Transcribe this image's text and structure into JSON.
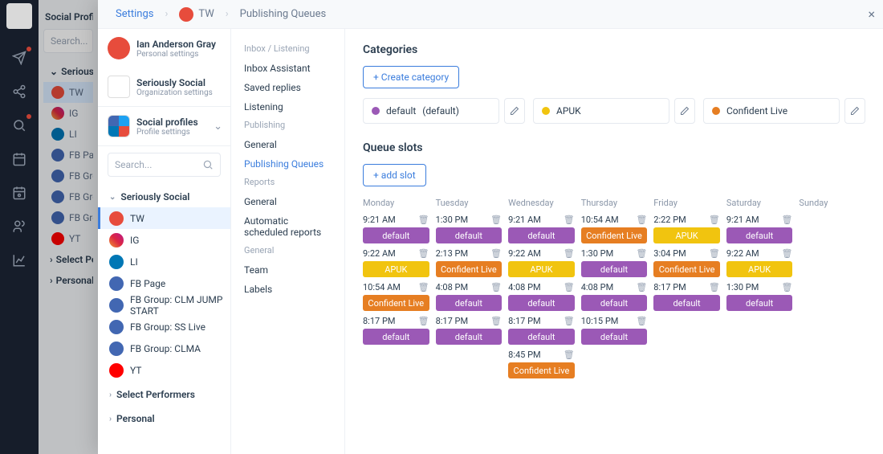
{
  "rail": {
    "items": [
      "logo",
      "send",
      "share",
      "search",
      "calendar",
      "schedule",
      "team",
      "stats"
    ]
  },
  "bg": {
    "title": "Social Profile",
    "search_placeholder": "Search...",
    "group": "Seriously",
    "items": [
      {
        "label": "TW",
        "cls": ""
      },
      {
        "label": "IG",
        "cls": "ig"
      },
      {
        "label": "LI",
        "cls": "li"
      },
      {
        "label": "FB Page",
        "cls": "fb"
      },
      {
        "label": "FB Grou",
        "cls": "fb"
      },
      {
        "label": "FB Grou",
        "cls": "fb"
      },
      {
        "label": "FB Grou",
        "cls": "fb"
      },
      {
        "label": "YT",
        "cls": "yt"
      }
    ],
    "select_perf": "Select Pe",
    "personal": "Personal"
  },
  "crumb": {
    "settings": "Settings",
    "profile": "TW",
    "page": "Publishing Queues"
  },
  "col1": {
    "p1": {
      "name": "Ian Anderson Gray",
      "sub": "Personal settings"
    },
    "p2": {
      "name": "Seriously Social",
      "sub": "Organization settings"
    },
    "p3": {
      "name": "Social profiles",
      "sub": "Profile settings"
    },
    "search_placeholder": "Search...",
    "group": "Seriously Social",
    "items": [
      {
        "label": "TW",
        "cls": "",
        "active": true
      },
      {
        "label": "IG",
        "cls": "ig"
      },
      {
        "label": "LI",
        "cls": "li"
      },
      {
        "label": "FB Page",
        "cls": "fb"
      },
      {
        "label": "FB Group: CLM JUMP START",
        "cls": "fb"
      },
      {
        "label": "FB Group: SS Live",
        "cls": "fb"
      },
      {
        "label": "FB Group: CLMA",
        "cls": "fb"
      },
      {
        "label": "YT",
        "cls": "yt"
      }
    ],
    "select_perf": "Select Performers",
    "personal": "Personal"
  },
  "col2": {
    "sections": [
      {
        "label": "Inbox / Listening",
        "items": [
          "Inbox Assistant",
          "Saved replies",
          "Listening"
        ]
      },
      {
        "label": "Publishing",
        "items": [
          "General",
          "Publishing Queues"
        ],
        "activeIndex": 1
      },
      {
        "label": "Reports",
        "items": [
          "General",
          "Automatic scheduled reports"
        ]
      },
      {
        "label": "General",
        "items": [
          "Team",
          "Labels"
        ]
      }
    ]
  },
  "main": {
    "categories_title": "Categories",
    "create_category": "+ Create category",
    "categories": [
      {
        "name": "default",
        "suffix": "(default)",
        "color": "#9b59b6"
      },
      {
        "name": "APUK",
        "suffix": "",
        "color": "#f1c40f"
      },
      {
        "name": "Confident Live",
        "suffix": "",
        "color": "#e67e22"
      }
    ],
    "queue_title": "Queue slots",
    "add_slot": "+ add slot",
    "category_colors": {
      "default": "#9b59b6",
      "APUK": "#f1c40f",
      "Confident Live": "#e67e22"
    },
    "days": [
      {
        "name": "Monday",
        "slots": [
          {
            "time": "9:21 AM",
            "cat": "default"
          },
          {
            "time": "9:22 AM",
            "cat": "APUK"
          },
          {
            "time": "10:54 AM",
            "cat": "Confident Live"
          },
          {
            "time": "8:17 PM",
            "cat": "default"
          }
        ]
      },
      {
        "name": "Tuesday",
        "slots": [
          {
            "time": "1:30 PM",
            "cat": "default"
          },
          {
            "time": "2:13 PM",
            "cat": "Confident Live"
          },
          {
            "time": "4:08 PM",
            "cat": "default"
          },
          {
            "time": "8:17 PM",
            "cat": "default"
          }
        ]
      },
      {
        "name": "Wednesday",
        "slots": [
          {
            "time": "9:21 AM",
            "cat": "default"
          },
          {
            "time": "9:22 AM",
            "cat": "APUK"
          },
          {
            "time": "4:08 PM",
            "cat": "default"
          },
          {
            "time": "8:17 PM",
            "cat": "default"
          },
          {
            "time": "8:45 PM",
            "cat": "Confident Live"
          }
        ]
      },
      {
        "name": "Thursday",
        "slots": [
          {
            "time": "10:54 AM",
            "cat": "Confident Live"
          },
          {
            "time": "1:30 PM",
            "cat": "default"
          },
          {
            "time": "4:08 PM",
            "cat": "default"
          },
          {
            "time": "10:15 PM",
            "cat": "default"
          }
        ]
      },
      {
        "name": "Friday",
        "slots": [
          {
            "time": "2:22 PM",
            "cat": "APUK"
          },
          {
            "time": "3:04 PM",
            "cat": "Confident Live"
          },
          {
            "time": "8:17 PM",
            "cat": "default"
          }
        ]
      },
      {
        "name": "Saturday",
        "slots": [
          {
            "time": "9:21 AM",
            "cat": "default"
          },
          {
            "time": "9:22 AM",
            "cat": "APUK"
          },
          {
            "time": "1:30 PM",
            "cat": "default"
          }
        ]
      },
      {
        "name": "Sunday",
        "slots": []
      }
    ]
  }
}
